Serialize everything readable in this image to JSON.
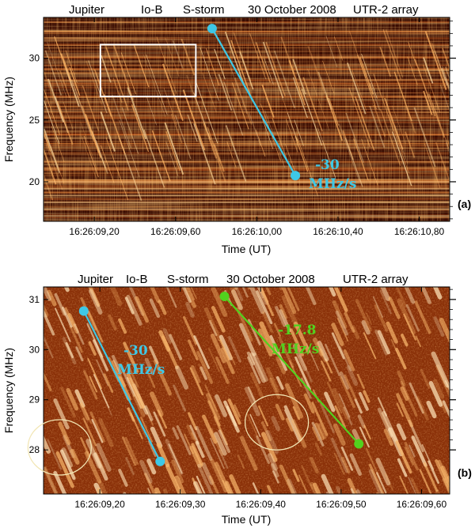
{
  "chart_data": [
    {
      "type": "heatmap",
      "panel_label": "(a)",
      "title": {
        "object": "Jupiter",
        "source": "Io-B",
        "event": "S-storm",
        "date": "30 October 2008",
        "instrument": "UTR-2 array"
      },
      "xlabel": "Time  (UT)",
      "ylabel": "Frequency  (MHz)",
      "xlim_seconds": [
        8.95,
        10.95
      ],
      "ylim": [
        16.8,
        33.3
      ],
      "x_ticks": [
        {
          "value": 9.2,
          "label": "16:26:09,20"
        },
        {
          "value": 9.6,
          "label": "16:26:09,60"
        },
        {
          "value": 10.0,
          "label": "16:26:10,00"
        },
        {
          "value": 10.4,
          "label": "16:26:10,40"
        },
        {
          "value": 10.8,
          "label": "16:26:10,80"
        }
      ],
      "y_ticks": [
        {
          "value": 20,
          "label": "20"
        },
        {
          "value": 25,
          "label": "25"
        },
        {
          "value": 30,
          "label": "30"
        }
      ],
      "drift_line": {
        "color": "#3ec8e6",
        "start": {
          "time": 9.78,
          "freq": 32.4
        },
        "end": {
          "time": 10.19,
          "freq": 20.5
        },
        "rate_label": [
          "-30",
          "MHz/s"
        ]
      },
      "zoom_box": {
        "time": [
          9.23,
          9.7
        ],
        "freq": [
          26.9,
          31.1
        ]
      }
    },
    {
      "type": "heatmap",
      "panel_label": "(b)",
      "title": {
        "object": "Jupiter",
        "source": "Io-B",
        "event": "S-storm",
        "date": "30 October 2008",
        "instrument": "UTR-2 array"
      },
      "xlabel": "Time  (UT)",
      "ylabel": "Frequency  (MHz)",
      "xlim_seconds": [
        9.13,
        9.635
      ],
      "ylim": [
        27.12,
        31.25
      ],
      "x_ticks": [
        {
          "value": 9.2,
          "label": "16:26:09,20"
        },
        {
          "value": 9.3,
          "label": "16:26:09,30"
        },
        {
          "value": 9.4,
          "label": "16:26:09,40"
        },
        {
          "value": 9.5,
          "label": "16:26:09,50"
        },
        {
          "value": 9.6,
          "label": "16:26:09,60"
        }
      ],
      "y_ticks": [
        {
          "value": 28,
          "label": "28"
        },
        {
          "value": 29,
          "label": "29"
        },
        {
          "value": 30,
          "label": "30"
        },
        {
          "value": 31,
          "label": "31"
        }
      ],
      "drift_lines": [
        {
          "color": "#3ec8e6",
          "start": {
            "time": 9.18,
            "freq": 30.77
          },
          "end": {
            "time": 9.275,
            "freq": 27.77
          },
          "rate_label": [
            "-30",
            "MHz/s"
          ]
        },
        {
          "color": "#52d21e",
          "start": {
            "time": 9.355,
            "freq": 31.06
          },
          "end": {
            "time": 9.522,
            "freq": 28.12
          },
          "rate_label": [
            "-17.8",
            "MHz/s"
          ]
        }
      ],
      "ellipses": [
        {
          "time": 9.15,
          "freq": 28.05
        },
        {
          "time": 9.42,
          "freq": 28.55
        }
      ]
    }
  ],
  "colors": {
    "background_dark": "#3a0c02",
    "burst_bright": "#ffd28a",
    "cyan_line": "#3ec8e6",
    "green_line": "#52d21e",
    "ellipse": "#f2e6b4",
    "zoom_box": "#ffffff"
  }
}
